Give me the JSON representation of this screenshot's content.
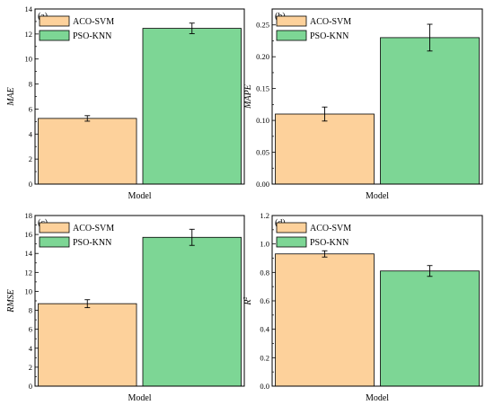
{
  "colors": {
    "aco_fill": "#FDD19B",
    "pso_fill": "#7DD695",
    "bar_stroke": "#000000",
    "axis": "#000000"
  },
  "chart_data": [
    {
      "type": "bar",
      "panel_label": "(a)",
      "xlabel": "Model",
      "ylabel": "MAE",
      "ylabel_sup": "",
      "ylim": [
        0,
        14
      ],
      "yticks": [
        0,
        2,
        4,
        6,
        8,
        10,
        12,
        14
      ],
      "ytick_labels": [
        "0",
        "2",
        "4",
        "6",
        "8",
        "10",
        "12",
        "14"
      ],
      "legend_position": "top-left",
      "series": [
        {
          "name": "ACO-SVM",
          "value": 5.25,
          "error": 0.22
        },
        {
          "name": "PSO-KNN",
          "value": 12.45,
          "error": 0.42
        }
      ]
    },
    {
      "type": "bar",
      "panel_label": "(b)",
      "xlabel": "Model",
      "ylabel": "MAPE",
      "ylabel_sup": "",
      "ylim": [
        0,
        0.275
      ],
      "yticks": [
        0,
        0.05,
        0.1,
        0.15,
        0.2,
        0.25
      ],
      "ytick_labels": [
        "0.00",
        "0.05",
        "0.10",
        "0.15",
        "0.20",
        "0.25"
      ],
      "legend_position": "top-left",
      "series": [
        {
          "name": "ACO-SVM",
          "value": 0.11,
          "error": 0.011
        },
        {
          "name": "PSO-KNN",
          "value": 0.23,
          "error": 0.021
        }
      ]
    },
    {
      "type": "bar",
      "panel_label": "(c)",
      "xlabel": "Model",
      "ylabel": "RMSE",
      "ylabel_sup": "",
      "ylim": [
        0,
        18
      ],
      "yticks": [
        0,
        2,
        4,
        6,
        8,
        10,
        12,
        14,
        16,
        18
      ],
      "ytick_labels": [
        "0",
        "2",
        "4",
        "6",
        "8",
        "10",
        "12",
        "14",
        "16",
        "18"
      ],
      "legend_position": "top-left",
      "series": [
        {
          "name": "ACO-SVM",
          "value": 8.7,
          "error": 0.42
        },
        {
          "name": "PSO-KNN",
          "value": 15.7,
          "error": 0.85
        }
      ]
    },
    {
      "type": "bar",
      "panel_label": "(d)",
      "xlabel": "Model",
      "ylabel": "R",
      "ylabel_sup": "2",
      "ylim": [
        0,
        1.2
      ],
      "yticks": [
        0,
        0.2,
        0.4,
        0.6,
        0.8,
        1.0,
        1.2
      ],
      "ytick_labels": [
        "0.0",
        "0.2",
        "0.4",
        "0.6",
        "0.8",
        "1.0",
        "1.2"
      ],
      "legend_position": "top-left",
      "series": [
        {
          "name": "ACO-SVM",
          "value": 0.93,
          "error": 0.022
        },
        {
          "name": "PSO-KNN",
          "value": 0.81,
          "error": 0.038
        }
      ]
    }
  ]
}
